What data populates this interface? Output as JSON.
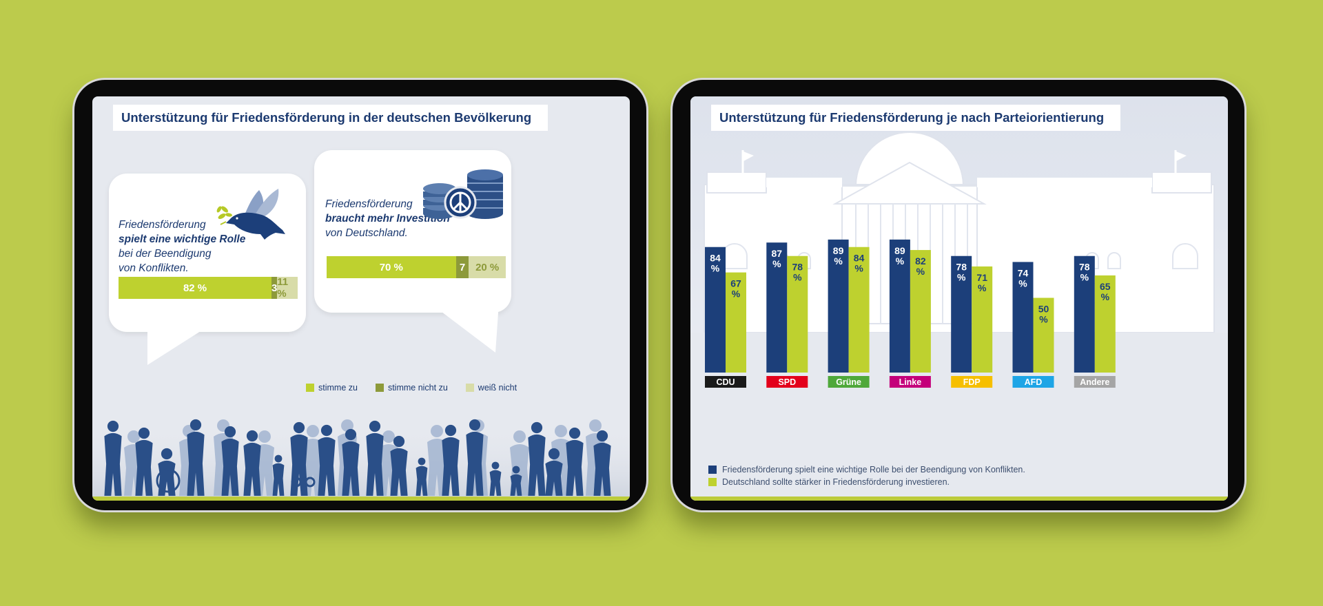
{
  "colors": {
    "background": "#bccb4c",
    "navy": "#1c3f7a",
    "lime": "#bed12f",
    "olive": "#8d9a3a",
    "pale": "#d8dca8",
    "title": "#1c3a70"
  },
  "left_panel": {
    "title": "Unterstützung für Friedensförderung in der deutschen Bevölkerung",
    "statement1": {
      "line1": "Friedensförderung",
      "line2": "spielt eine wichtige Rolle",
      "line3": "bei der Beendigung",
      "line4": "von Konflikten.",
      "icon": "dove-icon",
      "agree": 82,
      "disagree": 3,
      "dontknow": 11,
      "agree_label": "82 %",
      "disagree_label": "3",
      "dontknow_label": "11 %"
    },
    "statement2": {
      "line1": "Friedensförderung",
      "line2": "braucht mehr Investition",
      "line3": "von Deutschland.",
      "icon": "coins-peace-icon",
      "agree": 70,
      "disagree": 7,
      "dontknow": 20,
      "agree_label": "70 %",
      "disagree_label": "7",
      "dontknow_label": "20 %"
    },
    "legend": {
      "agree": "stimme zu",
      "disagree": "stimme nicht zu",
      "dontknow": "weiß nicht"
    },
    "illustration": "crowd-silhouette-icon"
  },
  "right_panel": {
    "title": "Unterstützung für Friedensförderung je nach Parteiorientierung",
    "background_icon": "reichstag-icon",
    "legend": {
      "series1": "Friedensförderung spielt eine wichtige Rolle bei der Beendigung von Konflikten.",
      "series2": "Deutschland sollte stärker in Friedensförderung investieren."
    }
  },
  "chart_data": [
    {
      "type": "bar",
      "title": "Unterstützung für Friedensförderung in der deutschen Bevölkerung",
      "categories": [
        "Friedensförderung spielt eine wichtige Rolle bei der Beendigung von Konflikten.",
        "Friedensförderung braucht mehr Investition von Deutschland."
      ],
      "series": [
        {
          "name": "stimme zu",
          "values": [
            82,
            70
          ]
        },
        {
          "name": "stimme nicht zu",
          "values": [
            3,
            7
          ]
        },
        {
          "name": "weiß nicht",
          "values": [
            11,
            20
          ]
        }
      ]
    },
    {
      "type": "bar",
      "title": "Unterstützung für Friedensförderung je nach Parteiorientierung",
      "categories": [
        "CDU",
        "SPD",
        "Grüne",
        "Linke",
        "FDP",
        "AFD",
        "Andere"
      ],
      "category_colors": [
        "#1a1a1a",
        "#e3001b",
        "#4fa83a",
        "#c4007a",
        "#f6bf00",
        "#1ea5e6",
        "#a5a5a5"
      ],
      "category_text_colors": [
        "#ffffff",
        "#ffffff",
        "#ffffff",
        "#ffffff",
        "#ffffff",
        "#ffffff",
        "#ffffff"
      ],
      "series": [
        {
          "name": "Friedensförderung spielt eine wichtige Rolle bei der Beendigung von Konflikten.",
          "values": [
            84,
            87,
            89,
            89,
            78,
            74,
            78
          ]
        },
        {
          "name": "Deutschland sollte stärker in Friedensförderung investieren.",
          "values": [
            67,
            78,
            84,
            82,
            71,
            50,
            65
          ]
        }
      ],
      "value_suffix": "%",
      "ylim": [
        0,
        100
      ]
    }
  ]
}
